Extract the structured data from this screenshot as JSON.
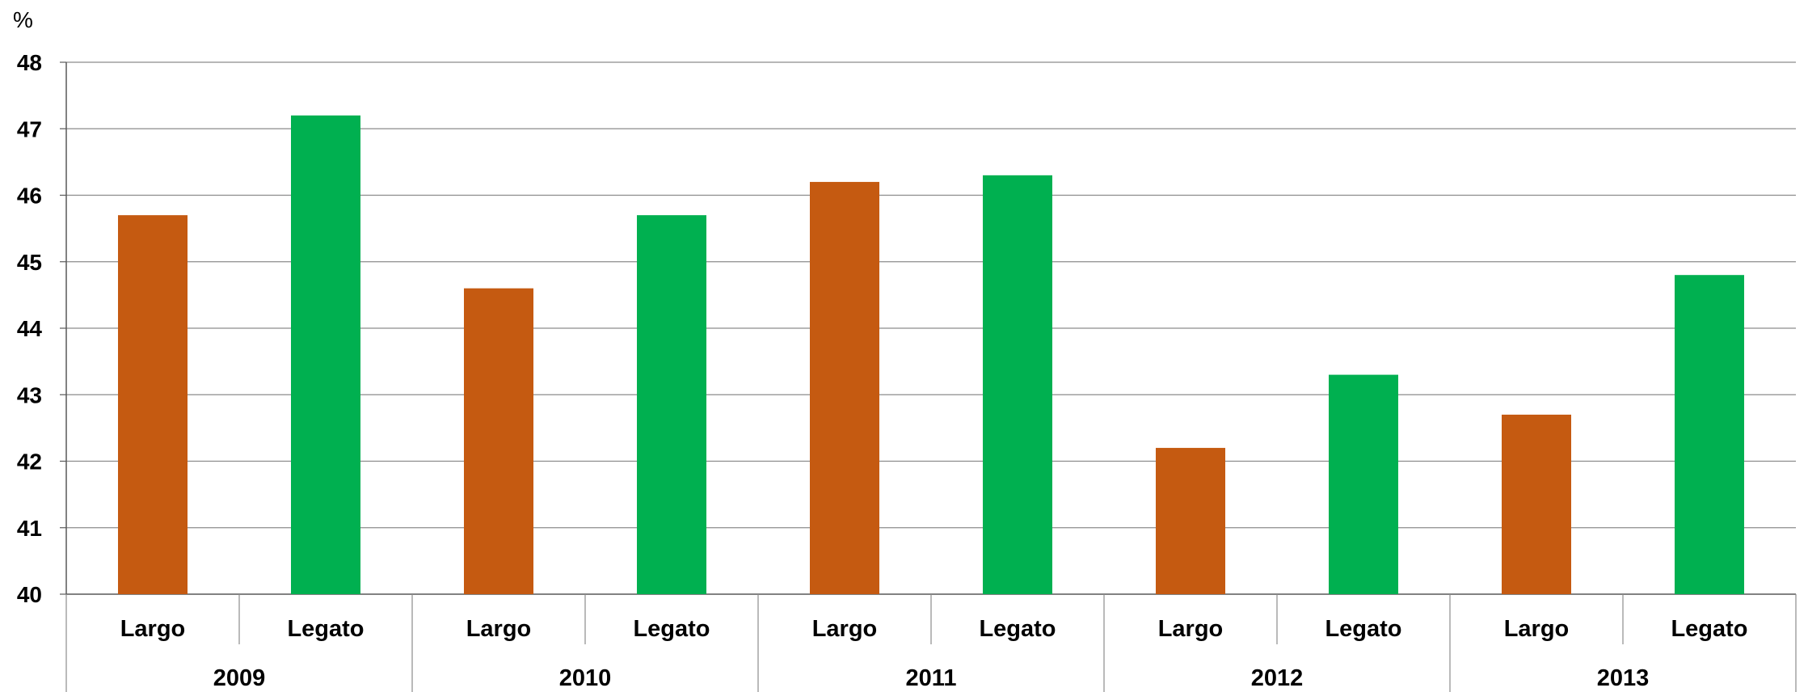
{
  "chart_data": {
    "type": "bar",
    "ylabel": "%",
    "ylim": [
      40,
      48
    ],
    "yticks": [
      40,
      41,
      42,
      43,
      44,
      45,
      46,
      47,
      48
    ],
    "grid": true,
    "groups": [
      "2009",
      "2010",
      "2011",
      "2012",
      "2013"
    ],
    "categories": [
      {
        "group": "2009",
        "label": "Largo",
        "value": 45.7,
        "color": "#C55A11"
      },
      {
        "group": "2009",
        "label": "Legato",
        "value": 47.2,
        "color": "#00B050"
      },
      {
        "group": "2010",
        "label": "Largo",
        "value": 44.6,
        "color": "#C55A11"
      },
      {
        "group": "2010",
        "label": "Legato",
        "value": 45.7,
        "color": "#00B050"
      },
      {
        "group": "2011",
        "label": "Largo",
        "value": 46.2,
        "color": "#C55A11"
      },
      {
        "group": "2011",
        "label": "Legato",
        "value": 46.3,
        "color": "#00B050"
      },
      {
        "group": "2012",
        "label": "Largo",
        "value": 42.2,
        "color": "#C55A11"
      },
      {
        "group": "2012",
        "label": "Legato",
        "value": 43.3,
        "color": "#00B050"
      },
      {
        "group": "2013",
        "label": "Largo",
        "value": 42.7,
        "color": "#C55A11"
      },
      {
        "group": "2013",
        "label": "Legato",
        "value": 44.8,
        "color": "#00B050"
      }
    ],
    "colors": {
      "Largo": "#C55A11",
      "Legato": "#00B050",
      "grid": "#8C8C8C"
    }
  }
}
